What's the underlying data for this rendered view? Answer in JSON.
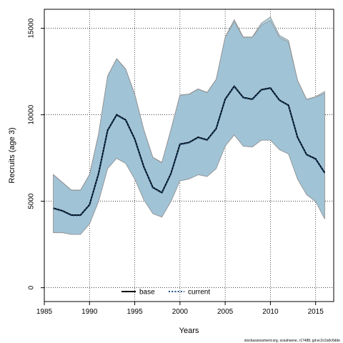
{
  "chart_data": {
    "type": "line",
    "title": "",
    "xlabel": "Years",
    "ylabel": "Recruits (age 3)",
    "xlim": [
      1985,
      2017
    ],
    "ylim": [
      -800,
      16100
    ],
    "x_ticks": [
      1985,
      1990,
      1995,
      2000,
      2005,
      2010,
      2015
    ],
    "y_ticks": [
      0,
      5000,
      10000,
      15000
    ],
    "grid": true,
    "legend_position": "bottom-center",
    "colors": {
      "band_base": "#b3d4e3",
      "band_current": "#9dc0d4",
      "band_edge": "#909090",
      "current_line": "#1a4f80",
      "base_line": "#000000",
      "grid": "#000000"
    },
    "x": [
      1986,
      1987,
      1988,
      1989,
      1990,
      1991,
      1992,
      1993,
      1994,
      1995,
      1996,
      1997,
      1998,
      1999,
      2000,
      2001,
      2002,
      2003,
      2004,
      2005,
      2006,
      2007,
      2008,
      2009,
      2010,
      2011,
      2012,
      2013,
      2014,
      2015,
      2016
    ],
    "series": [
      {
        "name": "base",
        "style": "solid",
        "values": [
          4600,
          4450,
          4200,
          4200,
          4800,
          6600,
          9100,
          10000,
          9700,
          8600,
          7000,
          5800,
          5500,
          6600,
          8300,
          8400,
          8700,
          8550,
          9200,
          10900,
          11650,
          11000,
          10900,
          11450,
          11550,
          10850,
          10550,
          8700,
          7700,
          7450,
          6650
        ],
        "lower": [
          3200,
          3200,
          3100,
          3100,
          3700,
          5000,
          6900,
          7500,
          7200,
          6300,
          5100,
          4300,
          4100,
          5000,
          6200,
          6300,
          6550,
          6450,
          6900,
          8200,
          8850,
          8200,
          8150,
          8550,
          8550,
          8000,
          7750,
          6300,
          5400,
          5000,
          4000
        ],
        "upper": [
          6550,
          6100,
          5650,
          5650,
          6550,
          8900,
          12250,
          13250,
          12650,
          11200,
          9150,
          7550,
          7250,
          9150,
          11150,
          11200,
          11500,
          11300,
          12050,
          14500,
          15500,
          14500,
          14500,
          15300,
          15650,
          14600,
          14300,
          12000,
          10900,
          11050,
          11350
        ]
      },
      {
        "name": "current",
        "style": "dotted",
        "values": [
          4580,
          4430,
          4180,
          4180,
          4780,
          6580,
          9080,
          9980,
          9680,
          8580,
          6980,
          5780,
          5480,
          6580,
          8280,
          8380,
          8680,
          8530,
          9180,
          10880,
          11630,
          10980,
          10880,
          11430,
          11530,
          10830,
          10530,
          8680,
          7680,
          7430,
          6630
        ],
        "lower": [
          3180,
          3180,
          3080,
          3080,
          3680,
          4980,
          6880,
          7480,
          7180,
          6280,
          5080,
          4280,
          4080,
          4980,
          6180,
          6280,
          6530,
          6430,
          6880,
          8180,
          8830,
          8180,
          8130,
          8530,
          8530,
          7980,
          7730,
          6280,
          5380,
          4980,
          3980
        ],
        "upper": [
          6530,
          6080,
          5630,
          5630,
          6530,
          8880,
          12230,
          13230,
          12630,
          11180,
          9130,
          7530,
          7230,
          9130,
          11130,
          11180,
          11480,
          11280,
          12030,
          14480,
          15380,
          14480,
          14480,
          15180,
          15450,
          14480,
          14200,
          11980,
          10880,
          11030,
          11230
        ]
      }
    ]
  },
  "footer_text": "stockassessment.org, sceahsene, r17488, git:ec2c2a0c6dde"
}
